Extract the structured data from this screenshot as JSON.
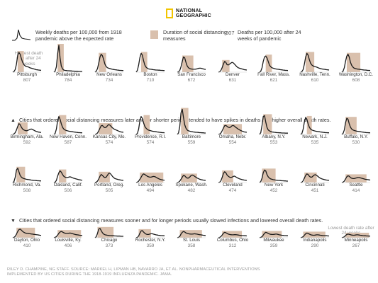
{
  "logo": {
    "line1": "NATIONAL",
    "line2": "GEOGRAPHIC",
    "color": "#f2c500"
  },
  "legend": {
    "line_desc": "Weekly deaths per 100,000 from 1918 pandemic above the expected rate",
    "shade_desc": "Duration of social distancing measures",
    "num_example": "807",
    "num_desc": "Deaths per 100,000 after 24 weeks of pandemic"
  },
  "annotations": {
    "highest": "Highest death rate after 24 weeks",
    "lowest": "Lowest death rate after 24 weeks"
  },
  "sections": {
    "later": {
      "symbol": "▲",
      "text": "Cities that ordered social distancing measures later and for shorter periods tended to have spikes in deaths and higher overall death rates."
    },
    "sooner": {
      "symbol": "▼",
      "text": "Cities that ordered social distancing measures sooner and for longer periods usually slowed infections and lowered overall death rates."
    }
  },
  "source": "RILEY D. CHAMPINE, NG STAFF. SOURCE: MARKEL H, LIPMAN HB, NAVARRO JA, ET AL. NONPHARMACEUTICAL INTERVENTIONS IMPLEMENTED BY US CITIES DURING THE 1918-1919 INFLUENZA PANDEMIC. JAMA.",
  "colors": {
    "line": "#1a1a1a",
    "shade": "#d9c0ad",
    "value": "#777777"
  },
  "chart_data": {
    "type": "line",
    "title": "",
    "xlabel": "",
    "ylabel": "",
    "metric": "Weekly deaths per 100,000 from 1918 pandemic above the expected rate",
    "total_metric": "Deaths per 100,000 after 24 weeks of pandemic",
    "weeks": 24,
    "y_scale_max": 150,
    "cities": [
      {
        "name": "Pittsburgh",
        "total": 807,
        "shade": [
          4,
          9
        ],
        "values": [
          0,
          3,
          15,
          45,
          95,
          110,
          100,
          75,
          55,
          42,
          35,
          32,
          30,
          28,
          24,
          22,
          20,
          18,
          16,
          14,
          13,
          12,
          11,
          10
        ]
      },
      {
        "name": "Philadelphia",
        "total": 784,
        "shade": [
          3,
          8
        ],
        "values": [
          0,
          5,
          30,
          100,
          150,
          80,
          35,
          18,
          12,
          10,
          9,
          8,
          8,
          7,
          7,
          6,
          6,
          5,
          5,
          5,
          4,
          4,
          4,
          4
        ]
      },
      {
        "name": "New Orleans",
        "total": 734,
        "shade": [
          3,
          9
        ],
        "values": [
          0,
          5,
          20,
          50,
          85,
          100,
          92,
          70,
          45,
          32,
          25,
          22,
          20,
          18,
          16,
          15,
          14,
          13,
          12,
          11,
          10,
          10,
          9,
          9
        ]
      },
      {
        "name": "Boston",
        "total": 710,
        "shade": [
          4,
          9
        ],
        "values": [
          0,
          10,
          40,
          80,
          105,
          95,
          65,
          40,
          28,
          22,
          18,
          17,
          16,
          15,
          14,
          13,
          12,
          12,
          11,
          11,
          10,
          10,
          9,
          9
        ]
      },
      {
        "name": "San Francisco",
        "total": 672,
        "shade": [
          4,
          13
        ],
        "values": [
          0,
          2,
          10,
          30,
          60,
          85,
          80,
          55,
          35,
          25,
          20,
          18,
          17,
          16,
          16,
          17,
          19,
          21,
          22,
          22,
          20,
          18,
          16,
          15
        ]
      },
      {
        "name": "Denver",
        "total": 631,
        "shade": [
          3,
          9
        ],
        "values": [
          0,
          2,
          10,
          25,
          45,
          60,
          55,
          42,
          40,
          45,
          50,
          55,
          52,
          45,
          38,
          30,
          25,
          22,
          20,
          18,
          16,
          14,
          13,
          12
        ]
      },
      {
        "name": "Fall River, Mass.",
        "total": 621,
        "shade": [
          5,
          10
        ],
        "values": [
          0,
          5,
          25,
          60,
          85,
          90,
          80,
          60,
          40,
          30,
          25,
          22,
          20,
          18,
          17,
          16,
          15,
          14,
          13,
          12,
          11,
          10,
          10,
          9
        ]
      },
      {
        "name": "Nashville, Tenn.",
        "total": 610,
        "shade": [
          4,
          11
        ],
        "values": [
          0,
          3,
          15,
          45,
          85,
          105,
          95,
          70,
          50,
          40,
          35,
          32,
          30,
          28,
          25,
          22,
          20,
          18,
          17,
          16,
          15,
          14,
          13,
          12
        ]
      },
      {
        "name": "Washington, D.C.",
        "total": 608,
        "shade": [
          4,
          15
        ],
        "values": [
          0,
          5,
          25,
          60,
          90,
          100,
          85,
          55,
          38,
          28,
          22,
          20,
          18,
          17,
          16,
          15,
          14,
          13,
          12,
          12,
          11,
          10,
          10,
          9
        ]
      },
      {
        "name": "Birmingham, Ala.",
        "total": 592,
        "shade": [
          4,
          12
        ],
        "values": [
          0,
          3,
          10,
          25,
          45,
          60,
          55,
          40,
          30,
          25,
          22,
          20,
          22,
          25,
          28,
          30,
          28,
          24,
          20,
          17,
          15,
          13,
          12,
          11
        ]
      },
      {
        "name": "New Haven, Conn.",
        "total": 587,
        "shade": [
          4,
          10
        ],
        "values": [
          0,
          5,
          30,
          75,
          100,
          85,
          60,
          40,
          30,
          25,
          22,
          20,
          18,
          17,
          16,
          15,
          14,
          13,
          12,
          11,
          10,
          10,
          9,
          9
        ]
      },
      {
        "name": "Kansas City, Mo.",
        "total": 574,
        "shade": [
          3,
          14
        ],
        "values": [
          0,
          2,
          8,
          20,
          35,
          48,
          50,
          42,
          38,
          40,
          48,
          55,
          52,
          45,
          38,
          32,
          28,
          25,
          22,
          19,
          16,
          14,
          13,
          12
        ]
      },
      {
        "name": "Providence, R.I.",
        "total": 574,
        "shade": [
          6,
          11
        ],
        "values": [
          0,
          5,
          30,
          75,
          100,
          90,
          65,
          45,
          35,
          28,
          24,
          22,
          20,
          18,
          17,
          16,
          15,
          14,
          13,
          12,
          11,
          10,
          10,
          9
        ]
      },
      {
        "name": "Baltimore",
        "total": 559,
        "shade": [
          3,
          9
        ],
        "values": [
          0,
          8,
          45,
          120,
          140,
          95,
          55,
          35,
          25,
          20,
          18,
          16,
          15,
          14,
          13,
          12,
          12,
          11,
          10,
          10,
          9,
          9,
          8,
          8
        ]
      },
      {
        "name": "Omaha, Nebr.",
        "total": 554,
        "shade": [
          4,
          19
        ],
        "values": [
          0,
          2,
          8,
          20,
          35,
          48,
          50,
          45,
          40,
          38,
          42,
          48,
          50,
          46,
          40,
          35,
          30,
          26,
          22,
          19,
          16,
          14,
          13,
          12
        ]
      },
      {
        "name": "Albany, N.Y.",
        "total": 553,
        "shade": [
          3,
          10
        ],
        "values": [
          0,
          10,
          50,
          100,
          105,
          70,
          40,
          25,
          20,
          16,
          14,
          13,
          12,
          11,
          10,
          10,
          9,
          9,
          8,
          8,
          8,
          7,
          7,
          7
        ]
      },
      {
        "name": "Newark, N.J.",
        "total": 535,
        "shade": [
          5,
          9
        ],
        "values": [
          0,
          5,
          30,
          70,
          95,
          85,
          60,
          40,
          30,
          25,
          22,
          20,
          18,
          17,
          16,
          15,
          14,
          13,
          12,
          11,
          10,
          10,
          9,
          9
        ]
      },
      {
        "name": "Buffalo, N.Y.",
        "total": 530,
        "shade": [
          3,
          12
        ],
        "values": [
          0,
          5,
          25,
          65,
          90,
          85,
          60,
          40,
          30,
          25,
          22,
          20,
          18,
          17,
          16,
          15,
          14,
          13,
          12,
          11,
          10,
          10,
          9,
          9
        ]
      },
      {
        "name": "Richmond, Va.",
        "total": 508,
        "shade": [
          3,
          10
        ],
        "values": [
          0,
          5,
          30,
          70,
          80,
          60,
          40,
          30,
          25,
          22,
          20,
          18,
          17,
          16,
          15,
          14,
          13,
          12,
          12,
          11,
          10,
          10,
          9,
          9
        ]
      },
      {
        "name": "Oakland, Calif.",
        "total": 506,
        "shade": [
          4,
          10
        ],
        "values": [
          0,
          2,
          12,
          35,
          55,
          65,
          58,
          45,
          35,
          30,
          28,
          28,
          30,
          32,
          30,
          27,
          24,
          22,
          20,
          18,
          16,
          15,
          14,
          13
        ]
      },
      {
        "name": "Portland, Oreg.",
        "total": 505,
        "shade": [
          3,
          12
        ],
        "values": [
          0,
          2,
          8,
          20,
          35,
          45,
          40,
          32,
          28,
          30,
          40,
          50,
          52,
          45,
          36,
          28,
          23,
          20,
          18,
          16,
          15,
          14,
          13,
          12
        ]
      },
      {
        "name": "Los Angeles",
        "total": 494,
        "shade": [
          3,
          22
        ],
        "values": [
          0,
          2,
          8,
          18,
          30,
          42,
          48,
          45,
          40,
          35,
          32,
          30,
          30,
          32,
          34,
          33,
          30,
          26,
          22,
          19,
          17,
          15,
          14,
          13
        ]
      },
      {
        "name": "Spokane, Wash.",
        "total": 482,
        "shade": [
          3,
          16
        ],
        "values": [
          0,
          2,
          8,
          18,
          30,
          40,
          38,
          30,
          25,
          25,
          30,
          38,
          42,
          40,
          35,
          30,
          26,
          22,
          19,
          17,
          15,
          14,
          13,
          12
        ]
      },
      {
        "name": "Cleveland",
        "total": 474,
        "shade": [
          3,
          12
        ],
        "values": [
          0,
          2,
          10,
          28,
          50,
          60,
          55,
          42,
          35,
          30,
          28,
          30,
          34,
          36,
          32,
          28,
          24,
          21,
          19,
          17,
          15,
          14,
          13,
          12
        ]
      },
      {
        "name": "New York",
        "total": 452,
        "shade": [
          2,
          13
        ],
        "values": [
          0,
          5,
          25,
          55,
          70,
          65,
          45,
          32,
          25,
          20,
          18,
          16,
          15,
          14,
          13,
          12,
          12,
          11,
          10,
          10,
          9,
          9,
          8,
          8
        ]
      },
      {
        "name": "Cincinnati",
        "total": 451,
        "shade": [
          3,
          13
        ],
        "values": [
          0,
          2,
          10,
          25,
          40,
          48,
          45,
          35,
          30,
          30,
          36,
          42,
          44,
          40,
          34,
          28,
          24,
          21,
          19,
          17,
          15,
          14,
          13,
          12
        ]
      },
      {
        "name": "Seattle",
        "total": 414,
        "shade": [
          3,
          20
        ],
        "values": [
          0,
          2,
          8,
          20,
          32,
          38,
          35,
          28,
          24,
          22,
          22,
          24,
          26,
          28,
          28,
          26,
          24,
          22,
          20,
          18,
          17,
          16,
          15,
          14
        ]
      },
      {
        "name": "Dayton, Ohio",
        "total": 410,
        "shade": [
          3,
          18
        ],
        "values": [
          0,
          2,
          8,
          20,
          35,
          45,
          48,
          42,
          35,
          30,
          27,
          25,
          24,
          23,
          22,
          21,
          20,
          19,
          18,
          17,
          16,
          15,
          14,
          13
        ]
      },
      {
        "name": "Louisville, Ky.",
        "total": 406,
        "shade": [
          3,
          22
        ],
        "values": [
          0,
          2,
          6,
          15,
          25,
          32,
          35,
          32,
          28,
          25,
          24,
          24,
          25,
          26,
          25,
          23,
          21,
          19,
          17,
          16,
          15,
          14,
          13,
          12
        ]
      },
      {
        "name": "Chicago",
        "total": 373,
        "shade": [
          2,
          15
        ],
        "values": [
          0,
          5,
          25,
          48,
          52,
          40,
          28,
          20,
          17,
          15,
          14,
          13,
          12,
          12,
          11,
          11,
          10,
          10,
          9,
          9,
          9,
          8,
          8,
          8
        ]
      },
      {
        "name": "Rochester, N.Y.",
        "total": 359,
        "shade": [
          2,
          12
        ],
        "values": [
          0,
          2,
          10,
          25,
          38,
          40,
          32,
          25,
          20,
          18,
          18,
          20,
          22,
          22,
          20,
          18,
          16,
          15,
          14,
          13,
          12,
          12,
          11,
          11
        ]
      },
      {
        "name": "St. Louis",
        "total": 358,
        "shade": [
          2,
          20
        ],
        "values": [
          0,
          2,
          8,
          20,
          30,
          35,
          32,
          27,
          24,
          22,
          21,
          20,
          20,
          21,
          22,
          21,
          20,
          18,
          17,
          16,
          15,
          14,
          13,
          12
        ]
      },
      {
        "name": "Columbus, Ohio",
        "total": 312,
        "shade": [
          3,
          19
        ],
        "values": [
          0,
          2,
          6,
          15,
          25,
          30,
          28,
          24,
          20,
          18,
          17,
          16,
          16,
          17,
          17,
          16,
          15,
          14,
          13,
          12,
          12,
          11,
          11,
          10
        ]
      },
      {
        "name": "Milwaukee",
        "total": 359,
        "shade": [
          2,
          18
        ],
        "values": [
          0,
          2,
          6,
          15,
          25,
          30,
          28,
          24,
          21,
          19,
          18,
          18,
          19,
          20,
          20,
          18,
          16,
          15,
          14,
          13,
          12,
          12,
          11,
          11
        ]
      },
      {
        "name": "Indianapolis",
        "total": 290,
        "shade": [
          2,
          20
        ],
        "values": [
          0,
          2,
          6,
          14,
          22,
          26,
          24,
          20,
          17,
          15,
          14,
          14,
          15,
          16,
          16,
          15,
          14,
          13,
          12,
          12,
          11,
          11,
          10,
          10
        ]
      },
      {
        "name": "Minneapolis",
        "total": 267,
        "shade": [
          3,
          22
        ],
        "values": [
          0,
          2,
          5,
          12,
          18,
          20,
          19,
          17,
          15,
          14,
          14,
          15,
          16,
          16,
          15,
          14,
          13,
          12,
          11,
          11,
          10,
          10,
          9,
          9
        ]
      }
    ]
  }
}
